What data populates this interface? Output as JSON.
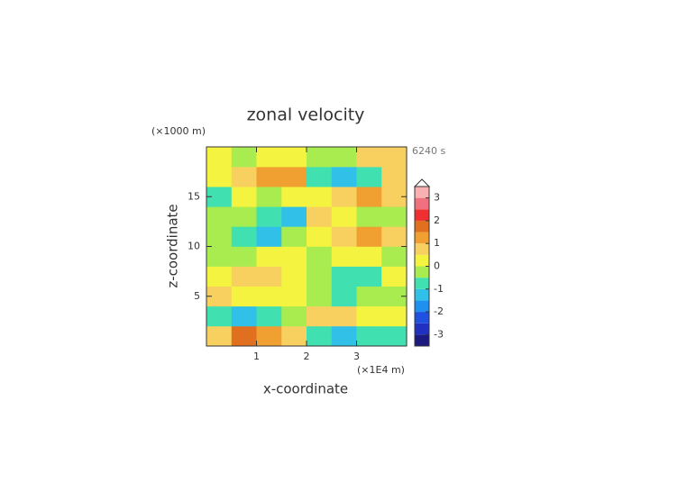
{
  "chart_data": {
    "type": "contour",
    "title": "zonal velocity",
    "y_unit_label": "(×1000 m)",
    "x_unit_label": "(×1E4 m)",
    "time_label": "6240 s",
    "xlabel": "x-coordinate",
    "ylabel": "z-coordinate",
    "xlim": [
      0,
      4
    ],
    "ylim": [
      0,
      20
    ],
    "xticks": [
      1,
      2,
      3
    ],
    "yticks": [
      5,
      10,
      15
    ],
    "x": [
      0.25,
      0.75,
      1.25,
      1.75,
      2.25,
      2.75,
      3.25,
      3.75
    ],
    "y": [
      1,
      3,
      5,
      7,
      9,
      11,
      13,
      15,
      17,
      19
    ],
    "z": [
      [
        0.8,
        1.5,
        1.2,
        0.6,
        -0.8,
        -1.2,
        -1.0,
        -0.6
      ],
      [
        -0.8,
        -1.3,
        -0.6,
        -0.3,
        0.8,
        0.6,
        0.4,
        0.2
      ],
      [
        0.6,
        0.3,
        0.4,
        0.2,
        -0.3,
        -0.6,
        -0.2,
        -0.3
      ],
      [
        0.2,
        0.6,
        0.8,
        0.3,
        -0.3,
        -0.8,
        -0.6,
        0.2
      ],
      [
        -0.3,
        -0.4,
        0.2,
        0,
        -0.3,
        0.3,
        0.2,
        -0.3
      ],
      [
        -0.3,
        -1.0,
        -1.5,
        -0.5,
        0.2,
        0.7,
        1.2,
        0.5
      ],
      [
        -0.3,
        -0.4,
        -0.8,
        -1.2,
        0.6,
        0.3,
        -0.2,
        -0.3
      ],
      [
        -0.7,
        0.2,
        -0.3,
        0.1,
        0.3,
        0.8,
        1.0,
        0.5
      ],
      [
        0.3,
        0.8,
        1.2,
        1.0,
        -0.8,
        -1.5,
        -0.7,
        0.6
      ],
      [
        0,
        -0.3,
        0.2,
        0.3,
        -0.5,
        -0.3,
        0.7,
        0.5
      ]
    ],
    "colorbar": {
      "levels": [
        -3.5,
        -3,
        -2.5,
        -2,
        -1.5,
        -1,
        -0.5,
        0,
        0.5,
        1,
        1.5,
        2,
        2.5,
        3,
        3.5
      ],
      "colors": [
        "#1a1a80",
        "#2030c0",
        "#2050e0",
        "#2090f0",
        "#30c0e8",
        "#40e0b0",
        "#a8ec50",
        "#f4f440",
        "#f8d060",
        "#f0a030",
        "#e07020",
        "#f03030",
        "#f07080",
        "#f8b0b0"
      ],
      "ticks": [
        -3,
        -2,
        -1,
        0,
        1,
        2,
        3
      ],
      "extend": "max"
    }
  }
}
